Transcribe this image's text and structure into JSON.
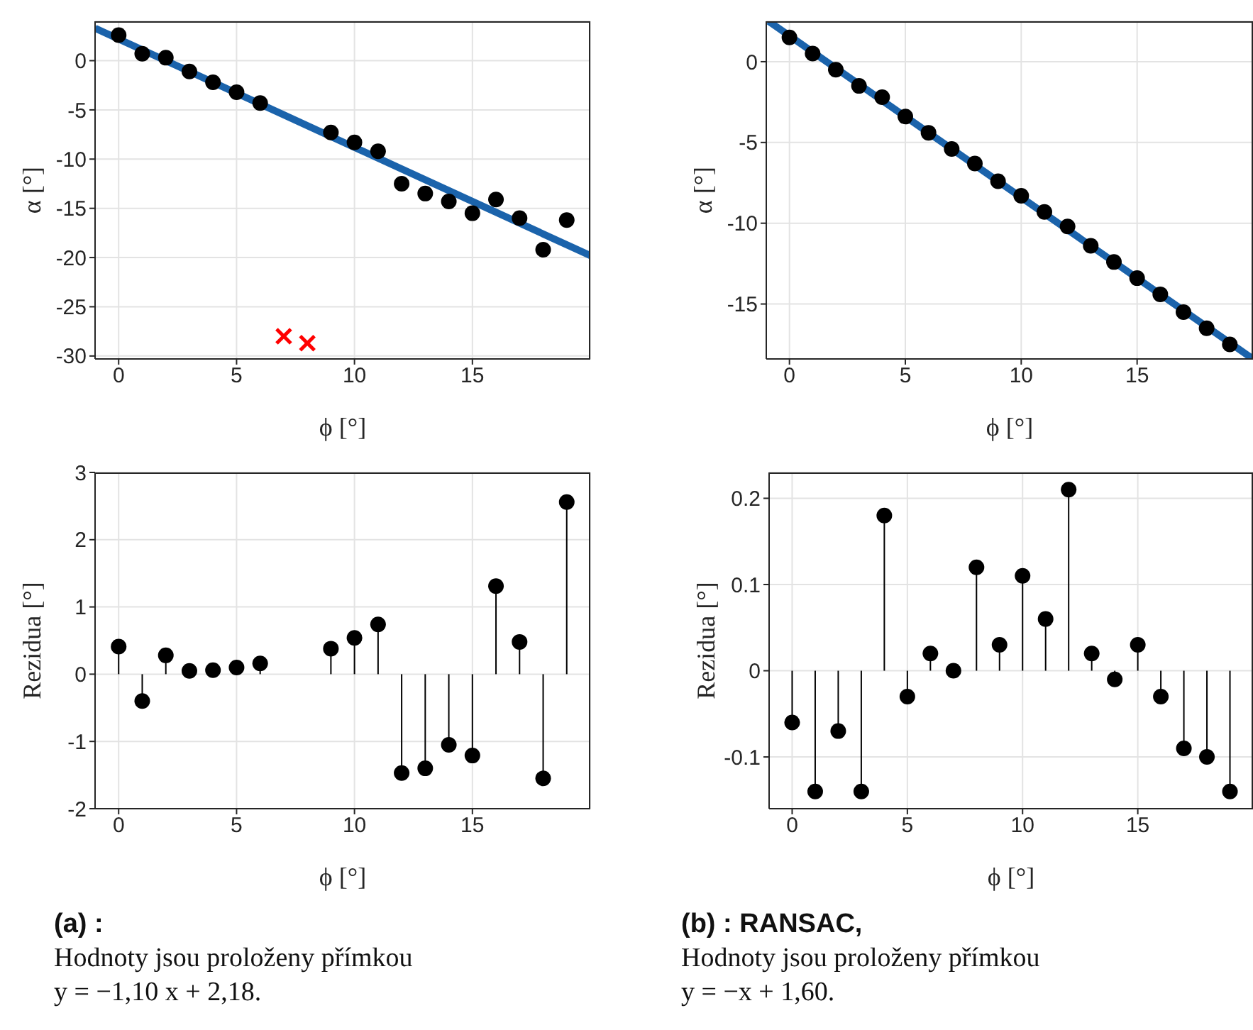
{
  "chart_data": [
    {
      "type": "scatter",
      "xlabel": "ϕ [°]",
      "ylabel": "α [°]",
      "xlim": [
        -1,
        20
      ],
      "xticks": [
        0,
        5,
        10,
        15
      ],
      "ylim": [
        -30.3,
        4
      ],
      "yticks": [
        -30,
        -25,
        -20,
        -15,
        -10,
        -5,
        0
      ],
      "grid": true,
      "series": [
        {
          "color": "#000000",
          "marker": "circle",
          "x": [
            0,
            1,
            2,
            3,
            4,
            5,
            6,
            9,
            10,
            11,
            12,
            13,
            14,
            15,
            16,
            17,
            18,
            19
          ],
          "values": [
            2.6,
            0.7,
            0.3,
            -1.1,
            -2.2,
            -3.2,
            -4.3,
            -7.3,
            -8.3,
            -9.2,
            -12.5,
            -13.5,
            -14.3,
            -15.5,
            -14.1,
            -16.0,
            -19.2,
            -16.2
          ]
        },
        {
          "color": "#ff0000",
          "marker": "cross",
          "x": [
            7,
            8
          ],
          "values": [
            -28.0,
            -28.7
          ]
        },
        {
          "type": "line",
          "color": "#1b63ab",
          "x": [
            -1,
            20
          ],
          "values": [
            3.3,
            -19.8
          ]
        }
      ]
    },
    {
      "type": "scatter",
      "xlabel": "ϕ [°]",
      "ylabel": "α [°]",
      "xlim": [
        -1,
        20
      ],
      "xticks": [
        0,
        5,
        10,
        15
      ],
      "ylim": [
        -18.4,
        2.5
      ],
      "yticks": [
        -15,
        -10,
        -5,
        0
      ],
      "grid": true,
      "series": [
        {
          "color": "#000000",
          "marker": "circle",
          "x": [
            0,
            1,
            2,
            3,
            4,
            5,
            6,
            7,
            8,
            9,
            10,
            11,
            12,
            13,
            14,
            15,
            16,
            17,
            18,
            19
          ],
          "values": [
            1.5,
            0.5,
            -0.5,
            -1.5,
            -2.2,
            -3.4,
            -4.4,
            -5.4,
            -6.3,
            -7.4,
            -8.3,
            -9.3,
            -10.2,
            -11.4,
            -12.4,
            -13.4,
            -14.4,
            -15.5,
            -16.5,
            -17.5
          ]
        },
        {
          "type": "line",
          "color": "#1b63ab",
          "x": [
            -0.9,
            20
          ],
          "values": [
            2.5,
            -18.4
          ]
        }
      ]
    },
    {
      "type": "lollipop",
      "xlabel": "ϕ [°]",
      "ylabel": "Rezidua [°]",
      "xlim": [
        -1,
        20
      ],
      "xticks": [
        0,
        5,
        10,
        15
      ],
      "ylim": [
        -2,
        3
      ],
      "yticks": [
        -2,
        -1,
        0,
        1,
        2,
        3
      ],
      "grid": true,
      "marker": "circle",
      "annotations": [
        "(a) :",
        "Hodnoty jsou proloženy přímkou",
        "y = −1,10 x + 2,18."
      ],
      "series": [
        {
          "color": "#000000",
          "x": [
            0,
            1,
            2,
            3,
            4,
            5,
            6,
            9,
            10,
            11,
            12,
            13,
            14,
            15,
            16,
            17,
            18,
            19
          ],
          "values": [
            0.41,
            -0.4,
            0.28,
            0.05,
            0.06,
            0.1,
            0.16,
            0.38,
            0.54,
            0.74,
            -1.47,
            -1.4,
            -1.05,
            -1.21,
            1.31,
            0.48,
            -1.55,
            2.56
          ]
        }
      ]
    },
    {
      "type": "lollipop",
      "xlabel": "ϕ [°]",
      "ylabel": "Rezidua [°]",
      "xlim": [
        -1,
        20
      ],
      "xticks": [
        0,
        5,
        10,
        15
      ],
      "ylim": [
        -0.16,
        0.23
      ],
      "yticks": [
        -0.1,
        0,
        0.1,
        0.2
      ],
      "grid": true,
      "marker": "circle",
      "annotations": [
        "(b) :  RANSAC,",
        "Hodnoty jsou proloženy přímkou",
        "y = −x + 1,60."
      ],
      "series": [
        {
          "color": "#000000",
          "x": [
            0,
            1,
            2,
            3,
            4,
            5,
            6,
            7,
            8,
            9,
            10,
            11,
            12,
            13,
            14,
            15,
            16,
            17,
            18,
            19
          ],
          "values": [
            -0.06,
            -0.14,
            -0.07,
            -0.14,
            0.18,
            -0.03,
            0.02,
            0.0,
            0.12,
            0.03,
            0.11,
            0.06,
            0.21,
            0.02,
            -0.01,
            0.03,
            -0.03,
            -0.09,
            -0.1,
            -0.14
          ]
        }
      ]
    }
  ]
}
